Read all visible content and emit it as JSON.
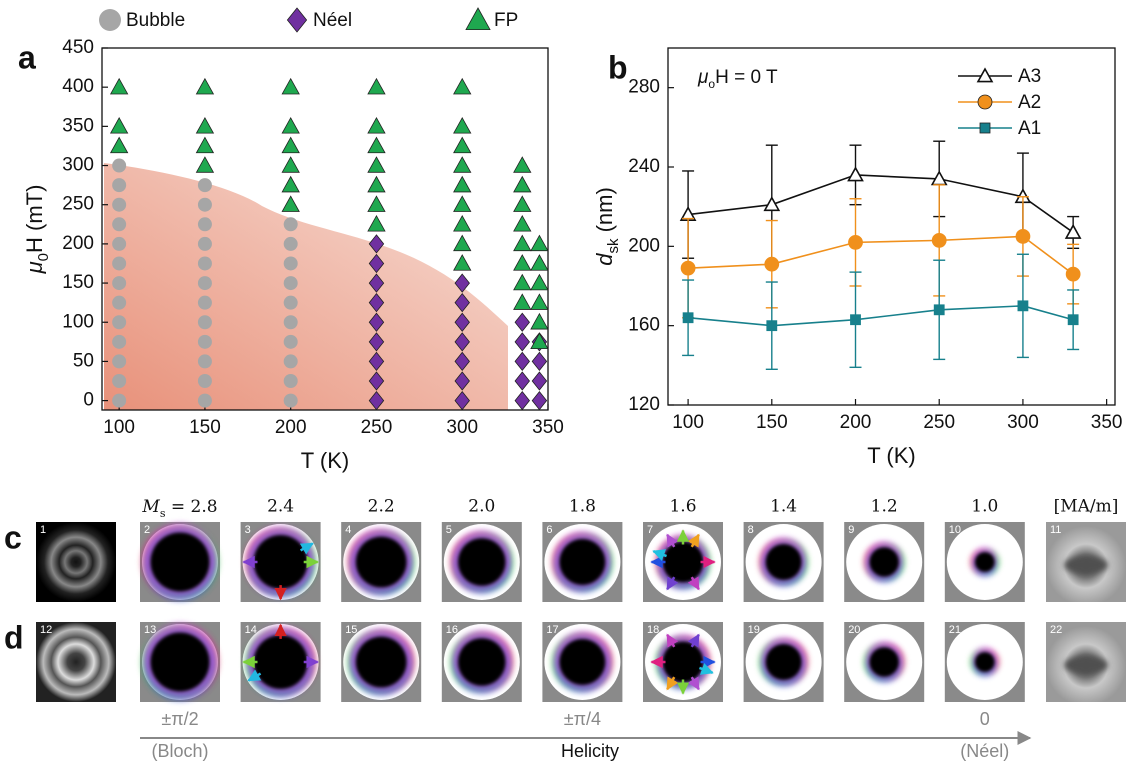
{
  "chart_data": [
    {
      "type": "scatter",
      "panel": "a",
      "legend": "top",
      "x_label": "T (K)",
      "y_label": [
        "μ",
        "0",
        "H (mT)"
      ],
      "xlim": [
        90,
        350
      ],
      "ylim": [
        -12,
        450
      ],
      "xticks": [
        100,
        150,
        200,
        250,
        300,
        350
      ],
      "yticks": [
        0,
        50,
        100,
        150,
        200,
        250,
        300,
        350,
        400,
        450
      ],
      "series": [
        {
          "name": "Bubble",
          "color": "#a6a6a6",
          "marker": "circle",
          "x": [
            100,
            100,
            100,
            100,
            100,
            100,
            100,
            100,
            100,
            100,
            100,
            100,
            100,
            150,
            150,
            150,
            150,
            150,
            150,
            150,
            150,
            150,
            150,
            150,
            150,
            200,
            200,
            200,
            200,
            200,
            200,
            200,
            200,
            200,
            200
          ],
          "values": [
            0,
            25,
            50,
            75,
            100,
            125,
            150,
            175,
            200,
            225,
            250,
            275,
            300,
            0,
            25,
            50,
            75,
            100,
            125,
            150,
            175,
            200,
            225,
            250,
            275,
            0,
            25,
            50,
            75,
            100,
            125,
            150,
            175,
            200,
            225
          ]
        },
        {
          "name": "Néel",
          "color": "#7030a0",
          "marker": "diamond",
          "x": [
            250,
            250,
            250,
            250,
            250,
            250,
            250,
            250,
            250,
            300,
            300,
            300,
            300,
            300,
            300,
            300,
            335,
            335,
            335,
            335,
            335,
            345,
            345,
            345,
            345
          ],
          "values": [
            0,
            25,
            50,
            75,
            100,
            125,
            150,
            175,
            200,
            0,
            25,
            50,
            75,
            100,
            125,
            150,
            0,
            25,
            50,
            75,
            100,
            0,
            25,
            50,
            75
          ]
        },
        {
          "name": "FP",
          "color": "#1fa84f",
          "marker": "triangle",
          "x": [
            100,
            100,
            100,
            150,
            150,
            150,
            150,
            200,
            200,
            200,
            200,
            200,
            200,
            250,
            250,
            250,
            250,
            250,
            250,
            250,
            300,
            300,
            300,
            300,
            300,
            300,
            300,
            300,
            300,
            335,
            335,
            335,
            335,
            335,
            335,
            335,
            335,
            345,
            345,
            345,
            345,
            345,
            345
          ],
          "values": [
            325,
            350,
            400,
            300,
            325,
            350,
            400,
            250,
            275,
            300,
            325,
            350,
            400,
            225,
            250,
            275,
            300,
            325,
            350,
            400,
            175,
            200,
            225,
            250,
            275,
            300,
            325,
            350,
            400,
            125,
            150,
            175,
            200,
            225,
            250,
            275,
            300,
            75,
            100,
            125,
            150,
            175,
            200
          ]
        }
      ]
    },
    {
      "type": "line",
      "panel": "b",
      "legend": "upper right",
      "annotation": [
        "μ",
        "o",
        "H = 0 T"
      ],
      "x_label": "T (K)",
      "y_label": [
        "d",
        "sk",
        " (nm)"
      ],
      "xlim": [
        88,
        355
      ],
      "ylim": [
        120,
        300
      ],
      "xticks": [
        100,
        150,
        200,
        250,
        300,
        350
      ],
      "yticks": [
        120,
        160,
        200,
        240,
        280
      ],
      "x": [
        100,
        150,
        200,
        250,
        300,
        330
      ],
      "series": [
        {
          "name": "A3",
          "color": "#111111",
          "marker": "triangle-open",
          "values": [
            216,
            221,
            236,
            234,
            225,
            207
          ],
          "errors": [
            22,
            30,
            15,
            19,
            22,
            8
          ]
        },
        {
          "name": "A2",
          "color": "#f0901c",
          "marker": "circle",
          "values": [
            189,
            191,
            202,
            203,
            205,
            186
          ],
          "errors": [
            25,
            22,
            22,
            28,
            20,
            15
          ]
        },
        {
          "name": "A1",
          "color": "#17808c",
          "marker": "square",
          "values": [
            164,
            160,
            163,
            168,
            170,
            163
          ],
          "errors": [
            19,
            22,
            24,
            25,
            26,
            15
          ]
        }
      ]
    }
  ],
  "images": {
    "first_column": [
      "M",
      "s",
      " = 2.8"
    ],
    "columns": [
      "2.4",
      "2.2",
      "2.0",
      "1.8",
      "1.6",
      "1.4",
      "1.2",
      "1.0"
    ],
    "unit": "[MA/m]",
    "rows": [
      {
        "label": "c",
        "tiles": [
          "1",
          "2",
          "3",
          "4",
          "5",
          "6",
          "7",
          "8",
          "9",
          "10",
          "11"
        ]
      },
      {
        "label": "d",
        "tiles": [
          "12",
          "13",
          "14",
          "15",
          "16",
          "17",
          "18",
          "19",
          "20",
          "21",
          "22"
        ]
      }
    ],
    "helicity": {
      "ticks": [
        "±π/2",
        "±π/4",
        "0"
      ],
      "left": "(Bloch)",
      "title": "Helicity",
      "right": "(Néel)"
    }
  }
}
